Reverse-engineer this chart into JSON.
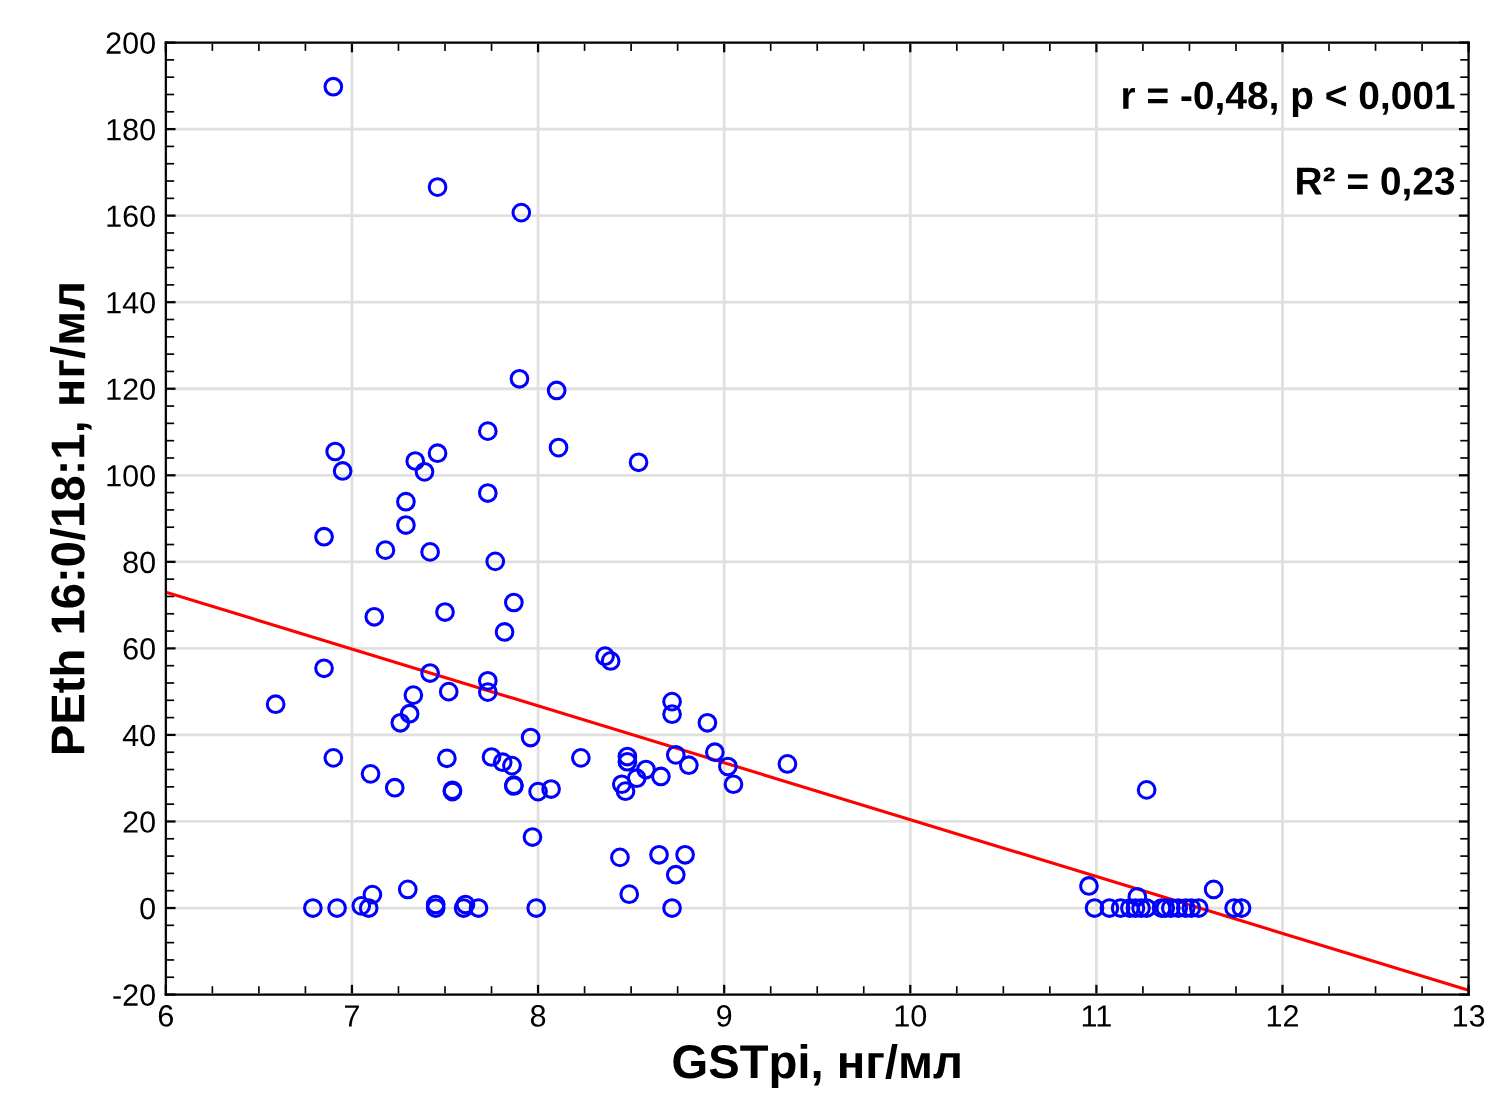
{
  "chart_data": {
    "type": "scatter",
    "xlabel": "GSTpi, нг/мл",
    "ylabel": "PEth 16:0/18:1, нг/мл",
    "xlim": [
      6,
      13
    ],
    "ylim": [
      -20,
      200
    ],
    "xticks": [
      6,
      7,
      8,
      9,
      10,
      11,
      12,
      13
    ],
    "yticks": [
      -20,
      0,
      20,
      40,
      60,
      80,
      100,
      120,
      140,
      160,
      180,
      200
    ],
    "grid": true,
    "marker": "circle",
    "annotations": [
      "r = -0,48, p < 0,001",
      "R² = 0,23"
    ],
    "series": [
      {
        "color": "#0000ff",
        "x": [
          6.9,
          7.46,
          7.91,
          7.9,
          8.1,
          6.91,
          7.46,
          7.73,
          8.11,
          8.54,
          6.95,
          7.34,
          7.39,
          7.29,
          7.73,
          6.85,
          7.29,
          7.18,
          7.42,
          7.77,
          7.87,
          7.12,
          7.5,
          7.82,
          8.36,
          8.39,
          6.85,
          7.42,
          7.73,
          7.73,
          7.33,
          7.52,
          6.59,
          7.31,
          7.26,
          7.96,
          6.9,
          7.51,
          7.75,
          7.81,
          7.86,
          8.23,
          8.48,
          8.48,
          8.58,
          8.53,
          8.45,
          8.47,
          7.1,
          7.23,
          7.54,
          7.54,
          7.87,
          7.87,
          8.0,
          8.07,
          7.97,
          8.44,
          8.49,
          7.11,
          7.3,
          6.79,
          6.92,
          7.05,
          7.09,
          7.45,
          7.45,
          7.6,
          7.61,
          7.68,
          7.99,
          8.72,
          8.72,
          8.91,
          8.74,
          8.81,
          8.95,
          9.02,
          9.05,
          9.34,
          8.66,
          8.65,
          8.79,
          8.74,
          8.72,
          11.27,
          10.96,
          11.63,
          11.22,
          10.99,
          11.07,
          11.13,
          11.18,
          11.21,
          11.24,
          11.27,
          11.35,
          11.37,
          11.4,
          11.44,
          11.48,
          11.51,
          11.55,
          11.74,
          11.78
        ],
        "values": [
          189.8,
          166.6,
          160.7,
          122.3,
          119.6,
          105.5,
          105.1,
          110.2,
          106.4,
          103.0,
          101.0,
          103.3,
          100.8,
          93.9,
          95.9,
          85.8,
          88.5,
          82.7,
          82.3,
          80.1,
          70.6,
          67.3,
          68.4,
          63.8,
          58.2,
          57.1,
          55.4,
          54.3,
          52.5,
          49.9,
          49.2,
          50.0,
          47.1,
          44.9,
          42.8,
          39.4,
          34.7,
          34.6,
          34.9,
          33.7,
          32.9,
          34.7,
          35.0,
          33.8,
          32.0,
          30.0,
          28.6,
          27.0,
          31.0,
          27.8,
          26.9,
          27.2,
          28.4,
          28.2,
          26.9,
          27.5,
          16.4,
          11.7,
          3.2,
          3.1,
          4.3,
          0,
          0,
          0.5,
          0,
          0.8,
          0,
          0,
          0.8,
          0,
          0,
          47.7,
          44.8,
          42.8,
          35.4,
          33.0,
          36.0,
          32.7,
          28.6,
          33.3,
          30.4,
          12.3,
          12.3,
          7.7,
          0,
          27.3,
          5.1,
          4.3,
          2.6,
          0,
          0,
          0,
          0,
          0,
          0,
          0,
          0,
          0,
          0,
          0,
          0,
          0,
          0,
          0,
          0
        ]
      },
      {
        "type": "line",
        "color": "#ff0000",
        "marker": "none",
        "x": [
          6,
          13
        ],
        "values": [
          73,
          -19
        ]
      }
    ]
  }
}
